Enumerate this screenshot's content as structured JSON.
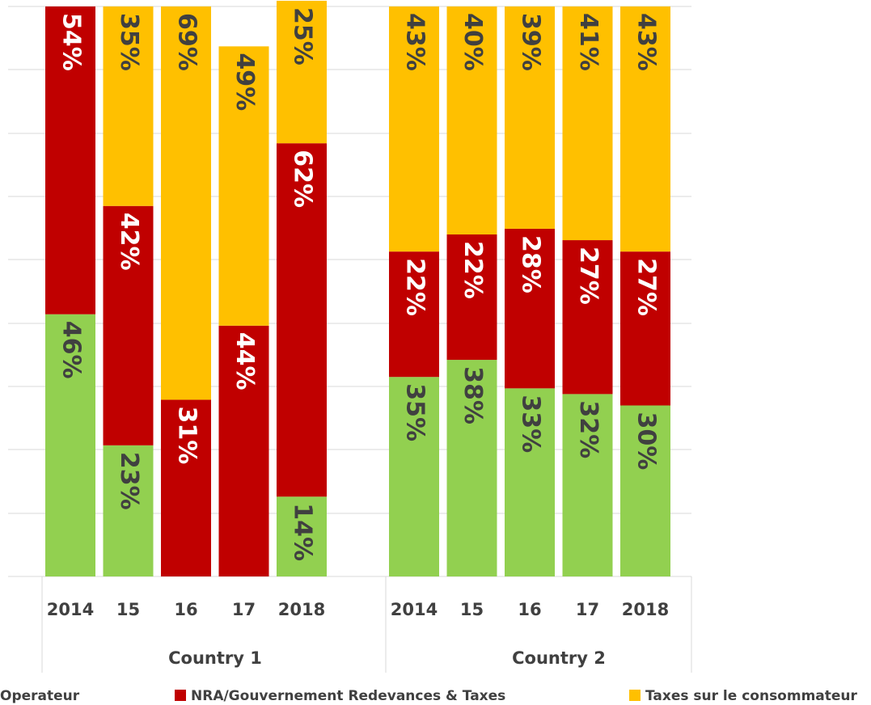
{
  "chart_data": {
    "type": "bar",
    "stacked": true,
    "ylim": [
      0,
      100
    ],
    "groups": [
      {
        "name": "Country 1",
        "categories": [
          "2014",
          "15",
          "16",
          "17",
          "2018"
        ]
      },
      {
        "name": "Country 2",
        "categories": [
          "2014",
          "15",
          "16",
          "17",
          "2018"
        ]
      }
    ],
    "series": [
      {
        "name": "Operateur",
        "color": "#92d050",
        "label_color": "#404040",
        "values": [
          46,
          23,
          null,
          null,
          14,
          35,
          38,
          33,
          32,
          30
        ],
        "value_labels": [
          "46%",
          "23%",
          null,
          null,
          "14%",
          "35%",
          "38%",
          "33%",
          "32%",
          "30%"
        ]
      },
      {
        "name": "NRA/Gouvernement Redevances & Taxes",
        "color": "#c00000",
        "label_color": "#ffffff",
        "values": [
          54,
          42,
          31,
          44,
          62,
          22,
          22,
          28,
          27,
          27
        ],
        "value_labels": [
          "54%",
          "42%",
          "31%",
          "44%",
          "62%",
          "22%",
          "22%",
          "28%",
          "27%",
          "27%"
        ]
      },
      {
        "name": "Taxes sur le consommateur",
        "color": "#ffc000",
        "label_color": "#404040",
        "values": [
          null,
          35,
          69,
          49,
          25,
          43,
          40,
          39,
          41,
          43
        ],
        "value_labels": [
          null,
          "35%",
          "69%",
          "49%",
          "25%",
          "43%",
          "40%",
          "39%",
          "41%",
          "43%"
        ]
      }
    ]
  }
}
